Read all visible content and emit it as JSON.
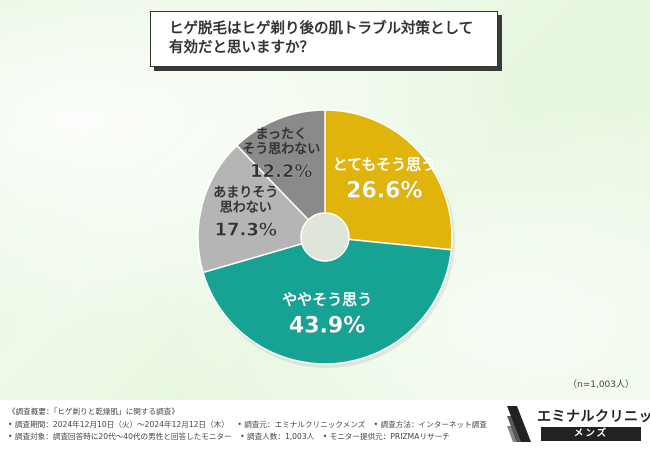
{
  "question": {
    "line1": "ヒゲ脱毛はヒゲ剃り後の肌トラブル対策として",
    "line2": "有効だと思いますか？"
  },
  "chart_data": {
    "type": "pie",
    "subtype": "donut",
    "start": "top",
    "direction": "clockwise",
    "slices": [
      {
        "label_lines": [
          "とてもそう思う"
        ],
        "value": 26.6,
        "display": "26.6%",
        "color": "#e1b40c",
        "label_color": "#ffffff"
      },
      {
        "label_lines": [
          "ややそう思う"
        ],
        "value": 43.9,
        "display": "43.9%",
        "color": "#17a394",
        "label_color": "#ffffff"
      },
      {
        "label_lines": [
          "あまりそう",
          "思わない"
        ],
        "value": 17.3,
        "display": "17.3%",
        "color": "#b5b5b5",
        "label_color": "#333333"
      },
      {
        "label_lines": [
          "まったく",
          "そう思わない"
        ],
        "value": 12.2,
        "display": "12.2%",
        "color": "#8a8a8a",
        "label_color": "#333333"
      }
    ]
  },
  "sample": "（n=1,003人）",
  "survey": {
    "title": "《調査概要：「ヒゲ剃りと乾燥肌」に関する調査》",
    "period": "• 調査期間：2024年12月10日（火）～2024年12月12日（木）",
    "conductor": "• 調査元：エミナルクリニックメンズ",
    "method": "• 調査方法：インターネット調査",
    "target": "• 調査対象：調査回答時に20代～40代の男性と回答したモニター",
    "count": "• 調査人数：1,003人",
    "provider": "• モニター提供元：PRIZMAリサーチ"
  },
  "logo": {
    "name": "エミナルクリニック",
    "sub": "メンズ"
  }
}
